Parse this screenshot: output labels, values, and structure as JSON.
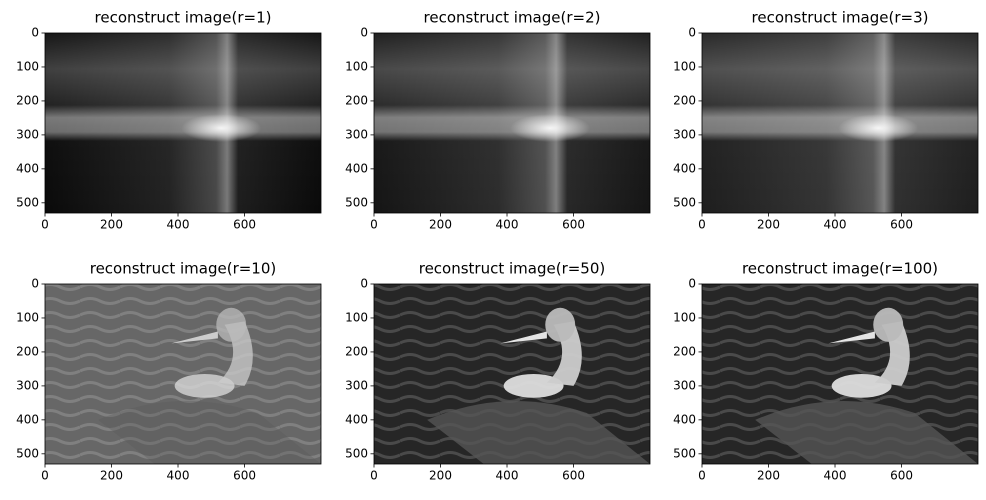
{
  "chart_data": [
    {
      "type": "image",
      "title": "reconstruct image(r=1)",
      "xlim": [
        0,
        830
      ],
      "ylim": [
        530,
        0
      ],
      "xticks": [
        0,
        200,
        400,
        600
      ],
      "yticks": [
        0,
        100,
        200,
        300,
        400,
        500
      ]
    },
    {
      "type": "image",
      "title": "reconstruct image(r=2)",
      "xlim": [
        0,
        830
      ],
      "ylim": [
        530,
        0
      ],
      "xticks": [
        0,
        200,
        400,
        600
      ],
      "yticks": [
        0,
        100,
        200,
        300,
        400,
        500
      ]
    },
    {
      "type": "image",
      "title": "reconstruct image(r=3)",
      "xlim": [
        0,
        830
      ],
      "ylim": [
        530,
        0
      ],
      "xticks": [
        0,
        200,
        400,
        600
      ],
      "yticks": [
        0,
        100,
        200,
        300,
        400,
        500
      ]
    },
    {
      "type": "image",
      "title": "reconstruct image(r=10)",
      "xlim": [
        0,
        830
      ],
      "ylim": [
        530,
        0
      ],
      "xticks": [
        0,
        200,
        400,
        600
      ],
      "yticks": [
        0,
        100,
        200,
        300,
        400,
        500
      ]
    },
    {
      "type": "image",
      "title": "reconstruct image(r=50)",
      "xlim": [
        0,
        830
      ],
      "ylim": [
        530,
        0
      ],
      "xticks": [
        0,
        200,
        400,
        600
      ],
      "yticks": [
        0,
        100,
        200,
        300,
        400,
        500
      ]
    },
    {
      "type": "image",
      "title": "reconstruct image(r=100)",
      "xlim": [
        0,
        830
      ],
      "ylim": [
        530,
        0
      ],
      "xticks": [
        0,
        200,
        400,
        600
      ],
      "yticks": [
        0,
        100,
        200,
        300,
        400,
        500
      ]
    }
  ]
}
